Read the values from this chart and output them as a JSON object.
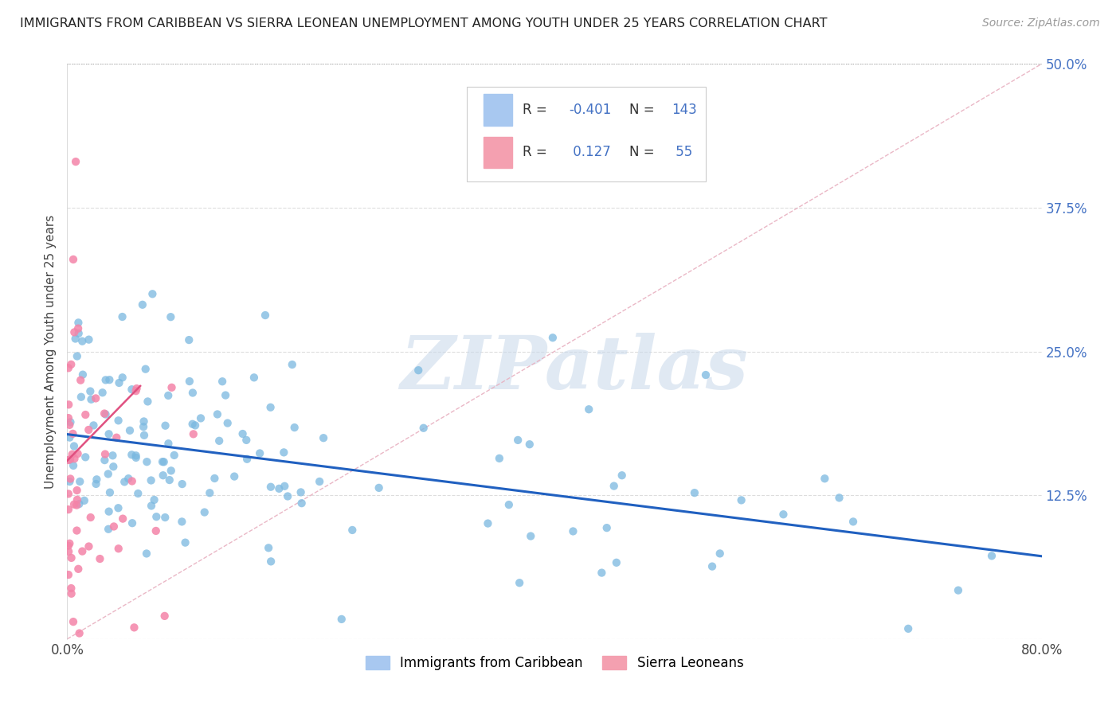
{
  "title": "IMMIGRANTS FROM CARIBBEAN VS SIERRA LEONEAN UNEMPLOYMENT AMONG YOUTH UNDER 25 YEARS CORRELATION CHART",
  "source": "Source: ZipAtlas.com",
  "ylabel": "Unemployment Among Youth under 25 years",
  "ytick_vals": [
    0.0,
    0.125,
    0.25,
    0.375,
    0.5
  ],
  "ytick_labels": [
    "",
    "12.5%",
    "25.0%",
    "37.5%",
    "50.0%"
  ],
  "xtick_vals": [
    0.0,
    0.8
  ],
  "xtick_labels": [
    "0.0%",
    "80.0%"
  ],
  "xlim": [
    0.0,
    0.8
  ],
  "ylim": [
    0.0,
    0.5
  ],
  "legend_R_blue": "-0.401",
  "legend_N_blue": "143",
  "legend_R_pink": "0.127",
  "legend_N_pink": "55",
  "scatter_blue_color": "#7ab8e0",
  "scatter_pink_color": "#f484a8",
  "trendline_blue_color": "#2060c0",
  "trendline_pink_color": "#e05080",
  "diag_color": "#e8b0c0",
  "watermark": "ZIPatlas",
  "bg_color": "#ffffff",
  "grid_color": "#dddddd",
  "blue_line_x": [
    0.0,
    0.8
  ],
  "blue_line_y": [
    0.178,
    0.072
  ],
  "pink_line_x": [
    0.0,
    0.06
  ],
  "pink_line_y": [
    0.155,
    0.22
  ],
  "diag_line_x": [
    0.0,
    0.8
  ],
  "diag_line_y": [
    0.0,
    0.5
  ]
}
